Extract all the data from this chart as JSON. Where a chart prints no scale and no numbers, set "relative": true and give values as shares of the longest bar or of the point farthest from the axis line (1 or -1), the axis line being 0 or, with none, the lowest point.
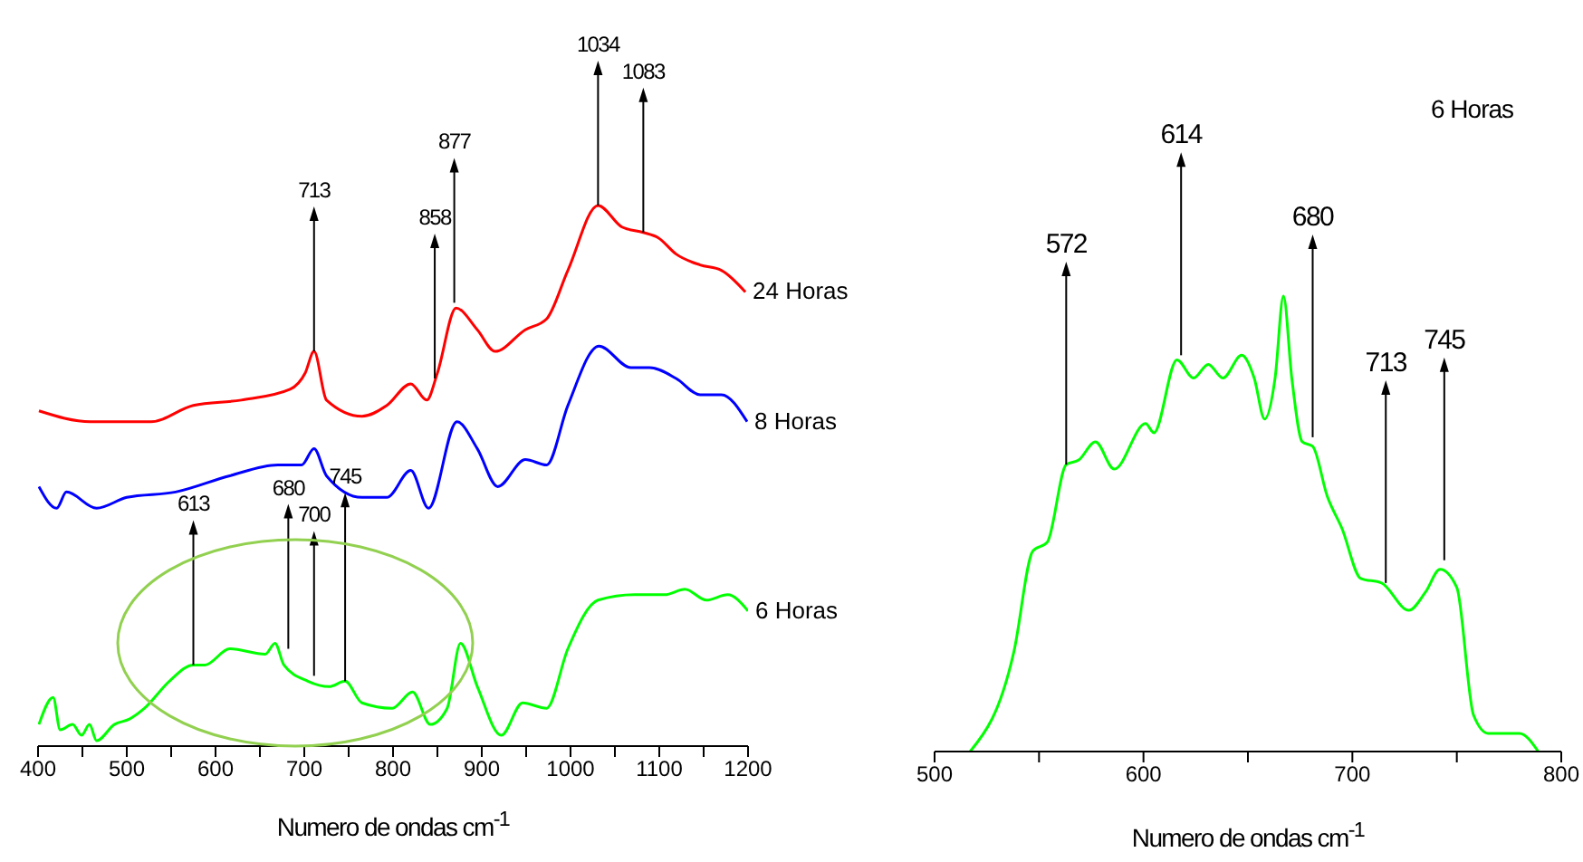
{
  "chart_data": [
    {
      "type": "line",
      "relative": true,
      "xlabel": "Numero de ondas cm$^{-1}$",
      "xlim": [
        400,
        1200
      ],
      "xticks": [
        400,
        {
          "value": 450,
          "label": null
        },
        500,
        {
          "value": 550,
          "label": null
        },
        600,
        {
          "value": 650,
          "label": null
        },
        700,
        {
          "value": 750,
          "label": null
        },
        800,
        {
          "value": 850,
          "label": null
        },
        900,
        {
          "value": 950,
          "label": null
        },
        1000,
        {
          "value": 1050,
          "label": null
        },
        1100,
        {
          "value": 1150,
          "label": null
        },
        1200
      ],
      "series": [
        {
          "name": "24 Horas",
          "color": "#ff0000",
          "x": [
            401,
            459,
            527,
            575,
            629,
            684,
            701,
            711,
            725,
            765,
            793,
            820,
            838,
            850,
            871,
            895,
            915,
            949,
            973,
            997,
            1031,
            1058,
            1082,
            1099,
            1119,
            1146,
            1170,
            1197
          ],
          "values": [
            0.62,
            0.6,
            0.6,
            0.63,
            0.64,
            0.66,
            0.69,
            0.73,
            0.64,
            0.61,
            0.63,
            0.67,
            0.64,
            0.69,
            0.81,
            0.77,
            0.73,
            0.77,
            0.79,
            0.88,
            1.0,
            0.96,
            0.95,
            0.94,
            0.91,
            0.89,
            0.88,
            0.84
          ]
        },
        {
          "name": "8 Horas",
          "color": "#0000ff",
          "x": [
            401,
            421,
            432,
            466,
            500,
            555,
            616,
            670,
            697,
            711,
            725,
            765,
            793,
            820,
            840,
            872,
            895,
            918,
            949,
            973,
            997,
            1032,
            1068,
            1089,
            1119,
            1146,
            1170,
            1199
          ],
          "values": [
            0.48,
            0.44,
            0.47,
            0.44,
            0.46,
            0.47,
            0.5,
            0.52,
            0.52,
            0.55,
            0.5,
            0.46,
            0.46,
            0.51,
            0.44,
            0.6,
            0.55,
            0.48,
            0.53,
            0.52,
            0.63,
            0.74,
            0.7,
            0.7,
            0.68,
            0.65,
            0.65,
            0.6
          ]
        },
        {
          "name": "6 Horas",
          "color": "#00ff00",
          "x": [
            401,
            417,
            425,
            439,
            449,
            458,
            466,
            486,
            503,
            520,
            548,
            575,
            588,
            616,
            656,
            667,
            677,
            704,
            728,
            746,
            765,
            799,
            822,
            842,
            861,
            876,
            895,
            922,
            946,
            973,
            997,
            1031,
            1072,
            1106,
            1129,
            1153,
            1177,
            1200
          ],
          "values": [
            0.04,
            0.09,
            0.03,
            0.04,
            0.02,
            0.04,
            0.01,
            0.04,
            0.05,
            0.07,
            0.12,
            0.15,
            0.15,
            0.18,
            0.17,
            0.19,
            0.15,
            0.12,
            0.11,
            0.12,
            0.08,
            0.07,
            0.1,
            0.04,
            0.07,
            0.19,
            0.11,
            0.02,
            0.08,
            0.07,
            0.18,
            0.27,
            0.28,
            0.28,
            0.29,
            0.27,
            0.28,
            0.25
          ]
        }
      ],
      "annotations": [
        {
          "text": "713",
          "x": 711,
          "y": 0.73
        },
        {
          "text": "858",
          "x": 847,
          "y": 0.68
        },
        {
          "text": "877",
          "x": 869,
          "y": 0.82
        },
        {
          "text": "1034",
          "x": 1031,
          "y": 1.0
        },
        {
          "text": "1083",
          "x": 1082,
          "y": 0.95
        },
        {
          "text": "613",
          "x": 575,
          "y": 0.15
        },
        {
          "text": "680",
          "x": 682,
          "y": 0.18
        },
        {
          "text": "700",
          "x": 711,
          "y": 0.13
        },
        {
          "text": "745",
          "x": 746,
          "y": 0.12
        }
      ]
    },
    {
      "type": "line",
      "relative": true,
      "title": "6 Horas",
      "xlabel": "Numero de ondas cm$^{-1}$",
      "xlim": [
        500,
        800
      ],
      "xticks": [
        500,
        {
          "value": 550,
          "label": null
        },
        600,
        {
          "value": 650,
          "label": null
        },
        700,
        {
          "value": 750,
          "label": null
        },
        800
      ],
      "series": [
        {
          "color": "#00ff00",
          "x": [
            517,
            538,
            547,
            554,
            563,
            569,
            577,
            586,
            601,
            605,
            616,
            624,
            631,
            638,
            647,
            653,
            658,
            663,
            667,
            671,
            676,
            681,
            688,
            695,
            704,
            714,
            727,
            735,
            742,
            750,
            758,
            765,
            774,
            780,
            789
          ],
          "values": [
            0,
            0.22,
            0.44,
            0.46,
            0.63,
            0.64,
            0.68,
            0.62,
            0.72,
            0.7,
            0.86,
            0.82,
            0.85,
            0.82,
            0.87,
            0.82,
            0.73,
            0.82,
            1.0,
            0.82,
            0.68,
            0.67,
            0.56,
            0.49,
            0.38,
            0.37,
            0.31,
            0.35,
            0.4,
            0.36,
            0.08,
            0.04,
            0.04,
            0.04,
            0
          ]
        }
      ],
      "annotations": [
        {
          "text": "572",
          "x": 563,
          "y": 0.63
        },
        {
          "text": "614",
          "x": 618,
          "y": 0.87
        },
        {
          "text": "680",
          "x": 681,
          "y": 0.69
        },
        {
          "text": "713",
          "x": 716,
          "y": 0.37
        },
        {
          "text": "745",
          "x": 744,
          "y": 0.42
        }
      ]
    }
  ]
}
